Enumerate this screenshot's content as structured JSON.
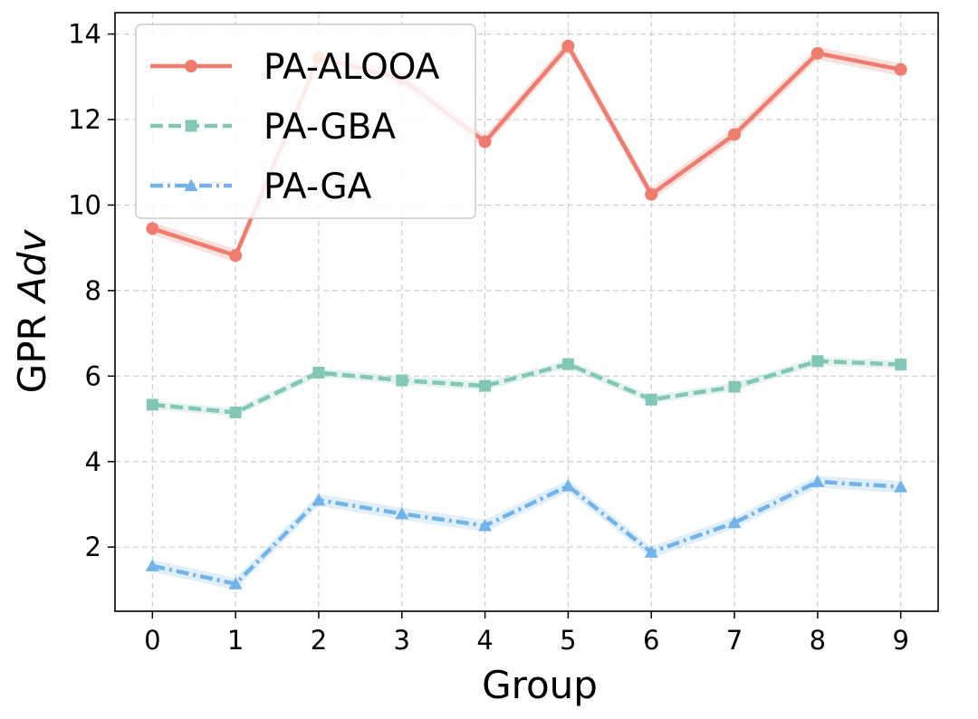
{
  "chart_data": {
    "type": "line",
    "title": "",
    "xlabel": "Group",
    "ylabel": {
      "main": "GPR ",
      "italic": "Adv"
    },
    "categories": [
      "0",
      "1",
      "2",
      "3",
      "4",
      "5",
      "6",
      "7",
      "8",
      "9"
    ],
    "x": [
      0,
      1,
      2,
      3,
      4,
      5,
      6,
      7,
      8,
      9
    ],
    "xlim": [
      -0.45,
      9.45
    ],
    "ylim": [
      0.5,
      14.5
    ],
    "yticks": [
      2,
      4,
      6,
      8,
      10,
      12,
      14
    ],
    "grid": true,
    "legend_position": "top-left",
    "series": [
      {
        "name": "PA-ALOOA",
        "color": "#F07B6F",
        "marker": "circle",
        "dash": "solid",
        "values": [
          9.45,
          8.82,
          13.45,
          12.95,
          11.48,
          13.72,
          10.25,
          11.65,
          13.55,
          13.17
        ],
        "band": 0.15
      },
      {
        "name": "PA-GBA",
        "color": "#82C7B6",
        "marker": "square",
        "dash": "dashed",
        "values": [
          5.33,
          5.15,
          6.08,
          5.9,
          5.77,
          6.28,
          5.45,
          5.75,
          6.35,
          6.27
        ],
        "band": 0.1
      },
      {
        "name": "PA-GA",
        "color": "#72B4EA",
        "marker": "triangle",
        "dash": "dashdot",
        "values": [
          1.56,
          1.14,
          3.1,
          2.78,
          2.5,
          3.43,
          1.88,
          2.57,
          3.53,
          3.41
        ],
        "band": 0.14
      }
    ]
  }
}
